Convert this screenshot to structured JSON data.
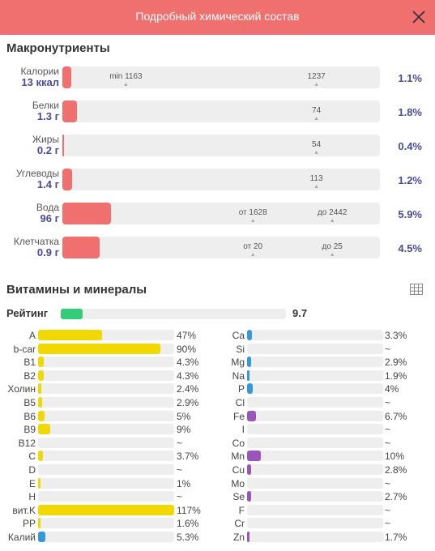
{
  "header": {
    "title": "Подробный химический состав",
    "close_icon": "close-icon"
  },
  "colors": {
    "accent": "#f07070",
    "track": "#eeeeee",
    "value_text": "#4a4a9a",
    "rating": "#33cc77",
    "vitamin": "#f0d800",
    "mineral_blue": "#3399dd",
    "mineral_purple": "#9955bb"
  },
  "macro": {
    "title": "Макронутриенты",
    "rows": [
      {
        "name": "Калории",
        "amount": "13 ккал",
        "pct": "1.1%",
        "fill": 0.011,
        "ticks": [
          {
            "label": "min 1163",
            "pos": 0.2
          },
          {
            "label": "1237",
            "pos": 0.8
          }
        ]
      },
      {
        "name": "Белки",
        "amount": "1.3 г",
        "pct": "1.8%",
        "fill": 0.018,
        "ticks": [
          {
            "label": "74",
            "pos": 0.8
          }
        ]
      },
      {
        "name": "Жиры",
        "amount": "0.2 г",
        "pct": "0.4%",
        "fill": 0.004,
        "ticks": [
          {
            "label": "54",
            "pos": 0.8
          }
        ]
      },
      {
        "name": "Углеводы",
        "amount": "1.4 г",
        "pct": "1.2%",
        "fill": 0.012,
        "ticks": [
          {
            "label": "113",
            "pos": 0.8
          }
        ]
      },
      {
        "name": "Вода",
        "amount": "96 г",
        "pct": "5.9%",
        "fill": 0.059,
        "ticks": [
          {
            "label": "от 1628",
            "pos": 0.6
          },
          {
            "label": "до 2442",
            "pos": 0.85
          }
        ]
      },
      {
        "name": "Клетчатка",
        "amount": "0.9 г",
        "pct": "4.5%",
        "fill": 0.045,
        "ticks": [
          {
            "label": "от 20",
            "pos": 0.6
          },
          {
            "label": "до 25",
            "pos": 0.85
          }
        ]
      }
    ]
  },
  "vitamins_minerals": {
    "title": "Витамины и минералы",
    "table_icon": "table-icon",
    "rating": {
      "label": "Рейтинг",
      "value": "9.7",
      "fill": 0.097
    },
    "vitamins": [
      {
        "name": "A",
        "pct": "47%",
        "fill": 0.47
      },
      {
        "name": "b-car",
        "pct": "90%",
        "fill": 0.9
      },
      {
        "name": "B1",
        "pct": "4.3%",
        "fill": 0.043
      },
      {
        "name": "B2",
        "pct": "4.3%",
        "fill": 0.043
      },
      {
        "name": "Холин",
        "pct": "2.4%",
        "fill": 0.024
      },
      {
        "name": "B5",
        "pct": "2.9%",
        "fill": 0.029
      },
      {
        "name": "B6",
        "pct": "5%",
        "fill": 0.05
      },
      {
        "name": "B9",
        "pct": "9%",
        "fill": 0.09
      },
      {
        "name": "B12",
        "pct": "~",
        "fill": 0
      },
      {
        "name": "C",
        "pct": "3.7%",
        "fill": 0.037
      },
      {
        "name": "D",
        "pct": "~",
        "fill": 0
      },
      {
        "name": "E",
        "pct": "1%",
        "fill": 0.01
      },
      {
        "name": "H",
        "pct": "~",
        "fill": 0
      },
      {
        "name": "вит.K",
        "pct": "117%",
        "fill": 1.0
      },
      {
        "name": "PP",
        "pct": "1.6%",
        "fill": 0.016
      },
      {
        "name": "Калий",
        "pct": "5.3%",
        "fill": 0.053,
        "color": "blue"
      }
    ],
    "minerals": [
      {
        "name": "Ca",
        "pct": "3.3%",
        "fill": 0.033,
        "color": "blue"
      },
      {
        "name": "Si",
        "pct": "~",
        "fill": 0,
        "color": "blue"
      },
      {
        "name": "Mg",
        "pct": "2.9%",
        "fill": 0.029,
        "color": "blue"
      },
      {
        "name": "Na",
        "pct": "1.9%",
        "fill": 0.019,
        "color": "blue"
      },
      {
        "name": "P",
        "pct": "4%",
        "fill": 0.04,
        "color": "blue"
      },
      {
        "name": "Cl",
        "pct": "~",
        "fill": 0,
        "color": "blue"
      },
      {
        "name": "Fe",
        "pct": "6.7%",
        "fill": 0.067,
        "color": "purple"
      },
      {
        "name": "I",
        "pct": "~",
        "fill": 0,
        "color": "purple"
      },
      {
        "name": "Co",
        "pct": "~",
        "fill": 0,
        "color": "purple"
      },
      {
        "name": "Mn",
        "pct": "10%",
        "fill": 0.1,
        "color": "purple"
      },
      {
        "name": "Cu",
        "pct": "2.8%",
        "fill": 0.028,
        "color": "purple"
      },
      {
        "name": "Mo",
        "pct": "~",
        "fill": 0,
        "color": "purple"
      },
      {
        "name": "Se",
        "pct": "2.7%",
        "fill": 0.027,
        "color": "purple"
      },
      {
        "name": "F",
        "pct": "~",
        "fill": 0,
        "color": "purple"
      },
      {
        "name": "Cr",
        "pct": "~",
        "fill": 0,
        "color": "purple"
      },
      {
        "name": "Zn",
        "pct": "1.7%",
        "fill": 0.017,
        "color": "purple"
      }
    ]
  }
}
